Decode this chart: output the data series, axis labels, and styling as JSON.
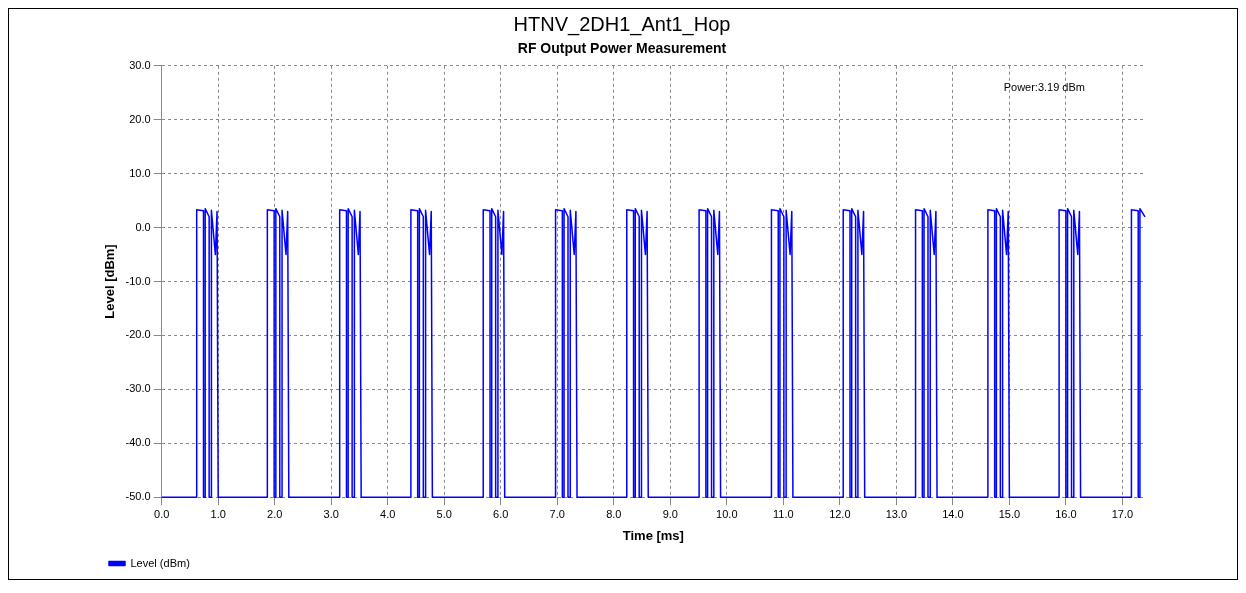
{
  "chart_data": {
    "type": "line",
    "title": "HTNV_2DH1_Ant1_Hop",
    "subtitle": "RF Output Power Measurement",
    "xlabel": "Time [ms]",
    "ylabel": "Level [dBm]",
    "annotations": [
      "Power:3.19 dBm"
    ],
    "series": [
      {
        "name": "Level (dBm)",
        "color": "#0000ff",
        "x": [
          0,
          0.62,
          0.62,
          0.74,
          0.74,
          0.77,
          0.77,
          0.84,
          0.84,
          0.88,
          0.88,
          0.95,
          0.98,
          1.0,
          1.87,
          1.87,
          1.99,
          1.99,
          2.02,
          2.02,
          2.09,
          2.09,
          2.13,
          2.13,
          2.2,
          2.23,
          2.25,
          3.15,
          3.15,
          3.27,
          3.27,
          3.3,
          3.3,
          3.37,
          3.37,
          3.41,
          3.41,
          3.48,
          3.51,
          3.53,
          4.41,
          4.41,
          4.53,
          4.53,
          4.56,
          4.56,
          4.63,
          4.63,
          4.67,
          4.67,
          4.74,
          4.77,
          4.79,
          5.69,
          5.69,
          5.81,
          5.81,
          5.84,
          5.84,
          5.91,
          5.91,
          5.95,
          5.95,
          6.02,
          6.05,
          6.07,
          6.97,
          6.97,
          7.09,
          7.09,
          7.12,
          7.12,
          7.19,
          7.19,
          7.23,
          7.23,
          7.3,
          7.33,
          7.35,
          8.23,
          8.23,
          8.35,
          8.35,
          8.38,
          8.38,
          8.45,
          8.45,
          8.49,
          8.49,
          8.56,
          8.59,
          8.61,
          9.51,
          9.51,
          9.63,
          9.63,
          9.66,
          9.66,
          9.73,
          9.73,
          9.77,
          9.77,
          9.84,
          9.87,
          9.89,
          10.79,
          10.79,
          10.91,
          10.91,
          10.94,
          10.94,
          11.01,
          11.01,
          11.05,
          11.05,
          11.12,
          11.15,
          11.17,
          12.06,
          12.06,
          12.18,
          12.18,
          12.21,
          12.21,
          12.28,
          12.28,
          12.32,
          12.32,
          12.39,
          12.42,
          12.44,
          13.34,
          13.34,
          13.46,
          13.46,
          13.49,
          13.49,
          13.56,
          13.56,
          13.6,
          13.6,
          13.67,
          13.7,
          13.72,
          14.62,
          14.62,
          14.74,
          14.74,
          14.77,
          14.77,
          14.84,
          14.84,
          14.88,
          14.88,
          14.95,
          14.98,
          15.0,
          15.88,
          15.88,
          16.0,
          16.0,
          16.03,
          16.03,
          16.1,
          16.1,
          16.14,
          16.14,
          16.21,
          16.24,
          16.26,
          17.16,
          17.16,
          17.28,
          17.28,
          17.31,
          17.31,
          17.4
        ],
        "values": [
          -50,
          -50,
          3.3,
          3.1,
          -50,
          -50,
          3.5,
          2,
          -50,
          -50,
          3.2,
          -5,
          3,
          -50,
          -50,
          3.3,
          3.1,
          -50,
          -50,
          3.5,
          2,
          -50,
          -50,
          3.2,
          -5,
          3,
          -50,
          -50,
          3.3,
          3.1,
          -50,
          -50,
          3.5,
          2,
          -50,
          -50,
          3.2,
          -5,
          3,
          -50,
          -50,
          3.3,
          3.1,
          -50,
          -50,
          3.5,
          2,
          -50,
          -50,
          3.2,
          -5,
          3,
          -50,
          -50,
          3.3,
          3.1,
          -50,
          -50,
          3.5,
          2,
          -50,
          -50,
          3.2,
          -5,
          3,
          -50,
          -50,
          3.3,
          3.1,
          -50,
          -50,
          3.5,
          2,
          -50,
          -50,
          3.2,
          -5,
          3,
          -50,
          -50,
          3.3,
          3.1,
          -50,
          -50,
          3.5,
          2,
          -50,
          -50,
          3.2,
          -5,
          3,
          -50,
          -50,
          3.3,
          3.1,
          -50,
          -50,
          3.5,
          2,
          -50,
          -50,
          3.2,
          -5,
          3,
          -50,
          -50,
          3.3,
          3.1,
          -50,
          -50,
          3.5,
          2,
          -50,
          -50,
          3.2,
          -5,
          3,
          -50,
          -50,
          3.3,
          3.1,
          -50,
          -50,
          3.5,
          2,
          -50,
          -50,
          3.2,
          -5,
          3,
          -50,
          -50,
          3.3,
          3.1,
          -50,
          -50,
          3.5,
          2,
          -50,
          -50,
          3.2,
          -5,
          3,
          -50,
          -50,
          3.3,
          3.1,
          -50,
          -50,
          3.5,
          2,
          -50,
          -50,
          3.2,
          -5,
          3,
          -50,
          -50,
          3.3,
          3.1,
          -50,
          -50,
          3.5,
          2,
          -50,
          -50,
          3.2,
          -5,
          3,
          -50,
          -50,
          3.3,
          3.1,
          -50,
          -50,
          3.5,
          2
        ]
      }
    ],
    "xlim": [
      0,
      17.4
    ],
    "ylim": [
      -50,
      30
    ],
    "xticks": [
      {
        "value": 0,
        "label": "0.0"
      },
      {
        "value": 1,
        "label": "1.0"
      },
      {
        "value": 2,
        "label": "2.0"
      },
      {
        "value": 3,
        "label": "3.0"
      },
      {
        "value": 4,
        "label": "4.0"
      },
      {
        "value": 5,
        "label": "5.0"
      },
      {
        "value": 6,
        "label": "6.0"
      },
      {
        "value": 7,
        "label": "7.0"
      },
      {
        "value": 8,
        "label": "8.0"
      },
      {
        "value": 9,
        "label": "9.0"
      },
      {
        "value": 10,
        "label": "10.0"
      },
      {
        "value": 11,
        "label": "11.0"
      },
      {
        "value": 12,
        "label": "12.0"
      },
      {
        "value": 13,
        "label": "13.0"
      },
      {
        "value": 14,
        "label": "14.0"
      },
      {
        "value": 15,
        "label": "15.0"
      },
      {
        "value": 16,
        "label": "16.0"
      },
      {
        "value": 17,
        "label": "17.0"
      }
    ],
    "yticks": [
      {
        "value": -50,
        "label": "-50.0"
      },
      {
        "value": -40,
        "label": "-40.0"
      },
      {
        "value": -30,
        "label": "-30.0"
      },
      {
        "value": -20,
        "label": "-20.0"
      },
      {
        "value": -10,
        "label": "-10.0"
      },
      {
        "value": 0,
        "label": "0.0"
      },
      {
        "value": 10,
        "label": "10.0"
      },
      {
        "value": 20,
        "label": "20.0"
      },
      {
        "value": 30,
        "label": "30.0"
      }
    ],
    "grid": true,
    "legend": "bottom left",
    "line_style": "solid"
  }
}
